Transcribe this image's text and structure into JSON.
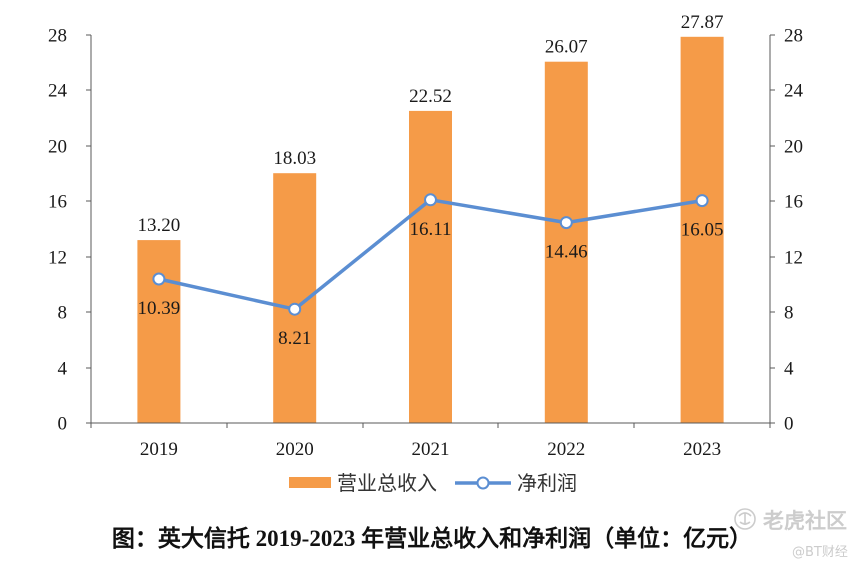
{
  "chart_data": {
    "type": "bar",
    "categories": [
      "2019",
      "2020",
      "2021",
      "2022",
      "2023"
    ],
    "series": [
      {
        "name": "营业总收入",
        "type": "bar",
        "axis": "left",
        "values": [
          13.2,
          18.03,
          22.52,
          26.07,
          27.87
        ],
        "data_labels": [
          "13.20",
          "18.03",
          "22.52",
          "26.07",
          "27.87"
        ],
        "color": "#F59B48"
      },
      {
        "name": "净利润",
        "type": "line",
        "axis": "right",
        "marker": "hollow-circle",
        "values": [
          10.39,
          8.21,
          16.11,
          14.46,
          16.05
        ],
        "data_labels": [
          "10.39",
          "8.21",
          "16.11",
          "14.46",
          "16.05"
        ],
        "color": "#5B8ED2"
      }
    ],
    "y_left": {
      "ylim": [
        0,
        28
      ],
      "ticks": [
        "0",
        "4",
        "8",
        "12",
        "16",
        "20",
        "24",
        "28"
      ]
    },
    "y_right": {
      "ylim": [
        0,
        28
      ],
      "ticks": [
        "0",
        "4",
        "8",
        "12",
        "16",
        "20",
        "24",
        "28"
      ]
    },
    "grid": false,
    "legend_position": "bottom"
  },
  "caption": "图：英大信托 2019-2023 年营业总收入和净利润（单位：亿元）",
  "watermark": {
    "brand": "老虎社区",
    "handle": "@BT财经",
    "color": "#CCCCCC"
  }
}
